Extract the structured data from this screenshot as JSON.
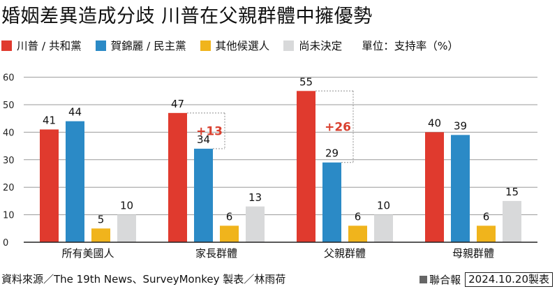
{
  "title": "婚姻差異造成分歧 川普在父親群體中擁優勢",
  "legend": {
    "unit": "單位：支持率（%）"
  },
  "colors": {
    "trump": "#e03a2e",
    "harris": "#2b8ac6",
    "other": "#f0b41c",
    "undecided": "#d8d9da",
    "axis": "#222222",
    "grid": "#9a9a9a",
    "gap": "#d9402f"
  },
  "chart_data": {
    "type": "bar",
    "title": "婚姻差異造成分歧 川普在父親群體中擁優勢",
    "ylabel": "單位：支持率（%）",
    "ylim": [
      0,
      60
    ],
    "yticks": [
      0,
      10,
      20,
      30,
      40,
      50,
      60
    ],
    "grid": true,
    "legend_position": "top-left",
    "categories": [
      "所有美國人",
      "家長群體",
      "父親群體",
      "母親群體"
    ],
    "series": [
      {
        "name": "川普 / 共和黨",
        "color": "#e03a2e",
        "values": [
          41,
          47,
          55,
          40
        ]
      },
      {
        "name": "賀錦麗 / 民主黨",
        "color": "#2b8ac6",
        "values": [
          44,
          34,
          29,
          39
        ]
      },
      {
        "name": "其他候選人",
        "color": "#f0b41c",
        "values": [
          5,
          6,
          6,
          6
        ]
      },
      {
        "name": "尚未決定",
        "color": "#d8d9da",
        "values": [
          10,
          13,
          10,
          15
        ]
      }
    ],
    "annotations": [
      {
        "category": "家長群體",
        "text": "+13"
      },
      {
        "category": "父親群體",
        "text": "+26"
      }
    ]
  },
  "footer": {
    "source": "資料來源／The 19th News、SurveyMonkey 製表／林雨荷",
    "publisher": "聯合報",
    "date": "2024.10.20製表"
  }
}
